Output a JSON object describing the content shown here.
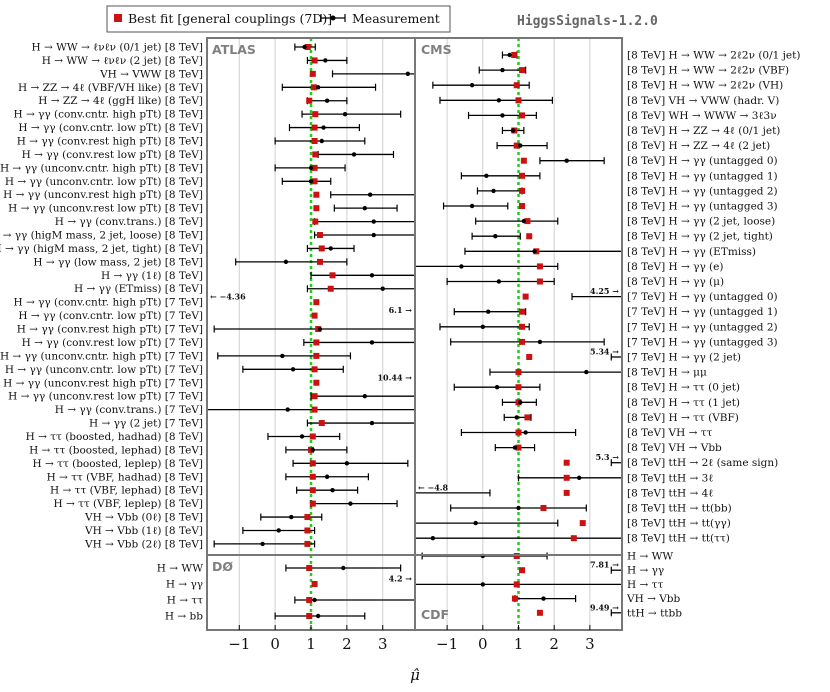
{
  "chart_data": {
    "type": "forest",
    "version_label": "HiggsSignals-1.2.0",
    "xlabel": "μ̂",
    "xlim": [
      -1.9,
      3.9
    ],
    "xticks": [
      -1,
      0,
      1,
      2,
      3
    ],
    "legend": {
      "best_fit": "Best fit [general couplings (7D)]",
      "measurement": "Measurement"
    },
    "colors": {
      "best_fit": "#cc1111",
      "measurement": "#000000",
      "sm_line": "#22cc22"
    },
    "panels": [
      {
        "name": "ATLAS",
        "side": "left",
        "rows": [
          {
            "label": "H → WW → ℓνℓν (0/1 jet) [8 TeV]",
            "mu": 0.82,
            "lo": 0.55,
            "hi": 1.12,
            "fit": 0.91
          },
          {
            "label": "H → WW → ℓνℓν (2 jet) [8 TeV]",
            "mu": 1.4,
            "lo": 0.9,
            "hi": 2.0,
            "fit": 1.1
          },
          {
            "label": "VH → VWW [8 TeV]",
            "mu": 3.7,
            "lo": 1.6,
            "hi": 3.9,
            "fit": 1.05
          },
          {
            "label": "H → ZZ → 4ℓ (VBF/VH like) [8 TeV]",
            "mu": 1.2,
            "lo": 0.2,
            "hi": 2.8,
            "fit": 1.08
          },
          {
            "label": "H → ZZ → 4ℓ (ggH like) [8 TeV]",
            "mu": 1.45,
            "lo": 0.9,
            "hi": 2.0,
            "fit": 0.95
          },
          {
            "label": "H → γγ (conv.cntr. high pTt) [8 TeV]",
            "mu": 1.95,
            "lo": 0.75,
            "hi": 3.5,
            "fit": 1.12
          },
          {
            "label": "H → γγ (conv.cntr. low pTt) [8 TeV]",
            "mu": 1.35,
            "lo": 0.4,
            "hi": 2.35,
            "fit": 1.1
          },
          {
            "label": "H → γγ (conv.rest high pTt) [8 TeV]",
            "mu": 1.3,
            "lo": 0.0,
            "hi": 2.5,
            "fit": 1.1
          },
          {
            "label": "H → γγ (conv.rest low pTt) [8 TeV]",
            "mu": 2.2,
            "lo": 1.2,
            "hi": 3.3,
            "fit": 1.12
          },
          {
            "label": "H → γγ (unconv.cntr. high pTt) [8 TeV]",
            "mu": 1.0,
            "lo": 0.0,
            "hi": 1.95,
            "fit": 1.1
          },
          {
            "label": "H → γγ (unconv.cntr. low pTt) [8 TeV]",
            "mu": 1.0,
            "lo": 0.2,
            "hi": 1.55,
            "fit": 1.1
          },
          {
            "label": "H → γγ (unconv.rest high pTt) [8 TeV]",
            "mu": 2.65,
            "lo": 1.55,
            "hi": 3.9,
            "fit": 1.15
          },
          {
            "label": "H → γγ (unconv.rest low pTt) [8 TeV]",
            "mu": 2.5,
            "lo": 1.65,
            "hi": 3.4,
            "fit": 1.15
          },
          {
            "label": "H → γγ (conv.trans.) [8 TeV]",
            "mu": 2.75,
            "lo": 1.1,
            "hi": 3.9,
            "fit": 1.12
          },
          {
            "label": "H → γγ (higM mass, 2 jet, loose) [8 TeV]",
            "mu": 2.75,
            "lo": 1.1,
            "hi": 3.9,
            "fit": 1.25
          },
          {
            "label": "H → γγ (higM mass, 2 jet, tight) [8 TeV]",
            "mu": 1.55,
            "lo": 0.9,
            "hi": 2.2,
            "fit": 1.3
          },
          {
            "label": "H → γγ (low mass, 2 jet) [8 TeV]",
            "mu": 0.3,
            "lo": -1.1,
            "hi": 2.0,
            "fit": 1.25
          },
          {
            "label": "H → γγ (1ℓ) [8 TeV]",
            "mu": 2.7,
            "lo": 1.0,
            "hi": 3.9,
            "fit": 1.6
          },
          {
            "label": "H → γγ (ETmiss) [8 TeV]",
            "mu": 3.0,
            "lo": 0.9,
            "hi": 3.9,
            "fit": 1.55
          },
          {
            "label": "H → γγ (conv.cntr. high pTt) [7 TeV]",
            "mu": null,
            "lo": null,
            "hi": null,
            "fit": 1.15,
            "offscale": {
              "text": "← −4.36",
              "dir": "left"
            }
          },
          {
            "label": "H → γγ (conv.cntr. low pTt) [7 TeV]",
            "mu": null,
            "lo": null,
            "hi": null,
            "fit": 1.1,
            "offscale": {
              "text": "6.1 →",
              "dir": "right"
            }
          },
          {
            "label": "H → γγ (conv.rest high pTt) [7 TeV]",
            "mu": 1.25,
            "lo": -1.7,
            "hi": 3.9,
            "fit": 1.2
          },
          {
            "label": "H → γγ (conv.rest low pTt) [7 TeV]",
            "mu": 2.7,
            "lo": 0.8,
            "hi": 3.9,
            "fit": 1.15
          },
          {
            "label": "H → γγ (unconv.cntr. high pTt) [7 TeV]",
            "mu": 0.2,
            "lo": -1.6,
            "hi": 2.1,
            "fit": 1.15
          },
          {
            "label": "H → γγ (unconv.cntr. low pTt) [7 TeV]",
            "mu": 0.5,
            "lo": -0.9,
            "hi": 1.9,
            "fit": 1.1
          },
          {
            "label": "H → γγ (unconv.rest high pTt) [7 TeV]",
            "mu": null,
            "lo": null,
            "hi": null,
            "fit": 1.15,
            "offscale": {
              "text": "10.44 →",
              "dir": "right"
            }
          },
          {
            "label": "H → γγ (unconv.rest low pTt) [7 TeV]",
            "mu": 2.5,
            "lo": 1.0,
            "hi": 3.9,
            "fit": 1.1
          },
          {
            "label": "H → γγ (conv.trans.) [7 TeV]",
            "mu": 0.35,
            "lo": -1.9,
            "hi": 3.9,
            "fit": 1.1
          },
          {
            "label": "H → γγ (2 jet) [7 TeV]",
            "mu": 2.7,
            "lo": 0.9,
            "hi": 3.9,
            "fit": 1.3
          },
          {
            "label": "H → ττ (boosted, hadhad) [8 TeV]",
            "mu": 0.75,
            "lo": -0.2,
            "hi": 1.8,
            "fit": 1.05
          },
          {
            "label": "H → ττ (boosted, lephad) [8 TeV]",
            "mu": 1.05,
            "lo": 0.3,
            "hi": 2.0,
            "fit": 1.0
          },
          {
            "label": "H → ττ (boosted, leplep) [8 TeV]",
            "mu": 2.0,
            "lo": 0.5,
            "hi": 3.7,
            "fit": 1.05
          },
          {
            "label": "H → ττ (VBF, hadhad) [8 TeV]",
            "mu": 1.45,
            "lo": 0.3,
            "hi": 2.6,
            "fit": 1.05
          },
          {
            "label": "H → ττ (VBF, lephad) [8 TeV]",
            "mu": 1.6,
            "lo": 0.6,
            "hi": 2.3,
            "fit": 1.05
          },
          {
            "label": "H → ττ (VBF, leplep) [8 TeV]",
            "mu": 2.1,
            "lo": 1.0,
            "hi": 3.4,
            "fit": 1.05
          },
          {
            "label": "VH → Vbb (0ℓ) [8 TeV]",
            "mu": 0.45,
            "lo": -0.4,
            "hi": 1.3,
            "fit": 0.9
          },
          {
            "label": "VH → Vbb (1ℓ) [8 TeV]",
            "mu": 0.1,
            "lo": -0.9,
            "hi": 1.1,
            "fit": 0.9
          },
          {
            "label": "VH → Vbb (2ℓ) [8 TeV]",
            "mu": -0.35,
            "lo": -1.7,
            "hi": 1.1,
            "fit": 0.9
          }
        ]
      },
      {
        "name": "CMS",
        "side": "right",
        "rows": [
          {
            "label": "[8 TeV] H → WW → 2ℓ2ν (0/1 jet)",
            "mu": 0.75,
            "lo": 0.55,
            "hi": 0.95,
            "fit": 0.88
          },
          {
            "label": "[8 TeV] H → WW → 2ℓ2ν (VBF)",
            "mu": 0.55,
            "lo": -0.1,
            "hi": 1.2,
            "fit": 1.1
          },
          {
            "label": "[8 TeV] H → WW → 2ℓ2ν (VH)",
            "mu": -0.3,
            "lo": -1.4,
            "hi": 1.3,
            "fit": 0.95
          },
          {
            "label": "[8 TeV] VH → VWW (hadr. V)",
            "mu": 0.45,
            "lo": -1.2,
            "hi": 1.95,
            "fit": 1.0
          },
          {
            "label": "[8 TeV] WH → WWW → 3ℓ3ν",
            "mu": 0.55,
            "lo": -0.4,
            "hi": 1.5,
            "fit": 1.1
          },
          {
            "label": "[8 TeV] H → ZZ → 4ℓ (0/1 jet)",
            "mu": 0.85,
            "lo": 0.55,
            "hi": 1.15,
            "fit": 0.88
          },
          {
            "label": "[8 TeV] H → ZZ → 4ℓ (2 jet)",
            "mu": 1.05,
            "lo": 0.4,
            "hi": 1.8,
            "fit": 0.95
          },
          {
            "label": "[8 TeV] H → γγ (untagged 0)",
            "mu": 2.35,
            "lo": 1.6,
            "hi": 3.4,
            "fit": 1.15
          },
          {
            "label": "[8 TeV] H → γγ (untagged 1)",
            "mu": 0.1,
            "lo": -0.6,
            "hi": 1.6,
            "fit": 1.1
          },
          {
            "label": "[8 TeV] H → γγ (untagged 2)",
            "mu": 0.3,
            "lo": -0.15,
            "hi": 1.1,
            "fit": 1.1
          },
          {
            "label": "[8 TeV] H → γγ (untagged 3)",
            "mu": -0.3,
            "lo": -1.1,
            "hi": 0.7,
            "fit": 1.1
          },
          {
            "label": "[8 TeV] H → γγ (2 jet, loose)",
            "mu": 1.15,
            "lo": -0.2,
            "hi": 2.1,
            "fit": 1.25
          },
          {
            "label": "[8 TeV] H → γγ (2 jet, tight)",
            "mu": 0.35,
            "lo": -0.3,
            "hi": 1.05,
            "fit": 1.3
          },
          {
            "label": "[8 TeV] H → γγ (ETmiss)",
            "mu": 1.45,
            "lo": -0.5,
            "hi": 3.9,
            "fit": 1.5
          },
          {
            "label": "[8 TeV] H → γγ (e)",
            "mu": -0.6,
            "lo": -1.9,
            "hi": 2.1,
            "fit": 1.6
          },
          {
            "label": "[8 TeV] H → γγ (μ)",
            "mu": 0.45,
            "lo": -1.0,
            "hi": 2.0,
            "fit": 1.6
          },
          {
            "label": "[7 TeV] H → γγ (untagged 0)",
            "mu": null,
            "lo": 2.5,
            "hi": 3.9,
            "fit": 1.2,
            "offscale": {
              "text": "4.25 →",
              "dir": "right"
            }
          },
          {
            "label": "[7 TeV] H → γγ (untagged 1)",
            "mu": 0.15,
            "lo": -0.8,
            "hi": 1.2,
            "fit": 1.1
          },
          {
            "label": "[7 TeV] H → γγ (untagged 2)",
            "mu": 0.0,
            "lo": -1.2,
            "hi": 1.3,
            "fit": 1.1
          },
          {
            "label": "[7 TeV] H → γγ (untagged 3)",
            "mu": 1.6,
            "lo": -0.9,
            "hi": 3.4,
            "fit": 1.1
          },
          {
            "label": "[7 TeV] H → γγ (2 jet)",
            "mu": null,
            "lo": 3.6,
            "hi": 3.9,
            "fit": 1.3,
            "offscale": {
              "text": "5.34 →",
              "dir": "right"
            }
          },
          {
            "label": "[8 TeV] H → μμ",
            "mu": 2.9,
            "lo": 0.2,
            "hi": 3.9,
            "fit": 1.0
          },
          {
            "label": "[8 TeV] H → ττ (0 jet)",
            "mu": 0.4,
            "lo": -0.8,
            "hi": 1.6,
            "fit": 1.0
          },
          {
            "label": "[8 TeV] H → ττ (1 jet)",
            "mu": 1.05,
            "lo": 0.55,
            "hi": 1.5,
            "fit": 1.0
          },
          {
            "label": "[8 TeV] H → ττ (VBF)",
            "mu": 0.95,
            "lo": 0.6,
            "hi": 1.35,
            "fit": 1.25
          },
          {
            "label": "[8 TeV] VH → ττ",
            "mu": 1.2,
            "lo": -0.6,
            "hi": 2.6,
            "fit": 1.0
          },
          {
            "label": "[8 TeV] VH → Vbb",
            "mu": 0.9,
            "lo": 0.35,
            "hi": 1.45,
            "fit": 1.0
          },
          {
            "label": "[8 TeV] ttH → 2ℓ (same sign)",
            "mu": null,
            "lo": 3.6,
            "hi": 3.9,
            "fit": 2.35,
            "offscale": {
              "text": "5.3 →",
              "dir": "right"
            }
          },
          {
            "label": "[8 TeV] ttH → 3ℓ",
            "mu": 2.7,
            "lo": 1.0,
            "hi": 3.9,
            "fit": 2.35
          },
          {
            "label": "[8 TeV] ttH → 4ℓ",
            "mu": null,
            "lo": -1.9,
            "hi": 0.2,
            "fit": 2.35,
            "offscale": {
              "text": "← −4.8",
              "dir": "left"
            }
          },
          {
            "label": "[8 TeV] ttH → tt(bb)",
            "mu": 1.0,
            "lo": -0.9,
            "hi": 2.9,
            "fit": 1.7
          },
          {
            "label": "[8 TeV] ttH → tt(γγ)",
            "mu": -0.2,
            "lo": -1.9,
            "hi": 2.1,
            "fit": 2.8
          },
          {
            "label": "[8 TeV] ttH → tt(ττ)",
            "mu": -1.4,
            "lo": -1.9,
            "hi": 3.9,
            "fit": 2.55
          }
        ]
      },
      {
        "name": "DØ",
        "side": "left",
        "rows": [
          {
            "label": "H → WW",
            "mu": 1.9,
            "lo": 0.3,
            "hi": 3.5,
            "fit": 0.95
          },
          {
            "label": "H → γγ",
            "mu": null,
            "lo": null,
            "hi": null,
            "fit": 1.1,
            "offscale": {
              "text": "4.2 →",
              "dir": "right"
            }
          },
          {
            "label": "H → ττ",
            "mu": 1.1,
            "lo": 0.55,
            "hi": 3.9,
            "fit": 0.95
          },
          {
            "label": "H → bb",
            "mu": 1.2,
            "lo": 0.0,
            "hi": 2.5,
            "fit": 0.95
          }
        ]
      },
      {
        "name": "CDF",
        "side": "right",
        "rows": [
          {
            "label": "H → WW",
            "mu": 0.0,
            "lo": -1.7,
            "hi": 1.8,
            "fit": 0.95
          },
          {
            "label": "H → γγ",
            "mu": null,
            "lo": 3.6,
            "hi": 3.9,
            "fit": 1.1,
            "offscale": {
              "text": "7.81 →",
              "dir": "right"
            }
          },
          {
            "label": "H → ττ",
            "mu": 0.0,
            "lo": -1.9,
            "hi": 3.9,
            "fit": 0.95
          },
          {
            "label": "VH → Vbb",
            "mu": 1.7,
            "lo": 0.9,
            "hi": 2.6,
            "fit": 0.9
          },
          {
            "label": "ttH → ttbb",
            "mu": null,
            "lo": 3.6,
            "hi": 3.9,
            "fit": 1.6,
            "offscale": {
              "text": "9.49 →",
              "dir": "right"
            }
          }
        ]
      }
    ]
  }
}
